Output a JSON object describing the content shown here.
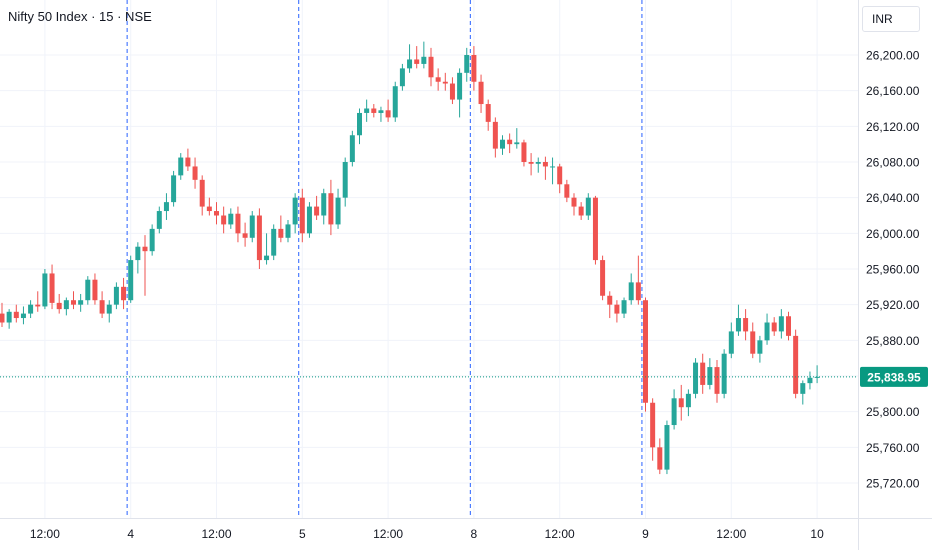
{
  "header": {
    "title": "Nifty 50 Index · 15 · NSE",
    "currency": "INR"
  },
  "colors": {
    "up": "#26a69a",
    "down": "#ef5350",
    "grid": "#f0f3fa",
    "separator": "#2962ff",
    "text": "#131722",
    "last_price_bg": "#089981"
  },
  "chart_data": {
    "type": "candlestick",
    "title": "Nifty 50 Index · 15 · NSE",
    "ylim": [
      25700,
      26220
    ],
    "y_ticks": [
      "26,200.00",
      "26,160.00",
      "26,120.00",
      "26,080.00",
      "26,040.00",
      "26,000.00",
      "25,960.00",
      "25,920.00",
      "25,880.00",
      "25,840.00",
      "25,800.00",
      "25,760.00",
      "25,720.00"
    ],
    "x_ticks": [
      {
        "label": "12:00",
        "i": 6
      },
      {
        "label": "4",
        "i": 18
      },
      {
        "label": "12:00",
        "i": 30
      },
      {
        "label": "5",
        "i": 42
      },
      {
        "label": "12:00",
        "i": 54
      },
      {
        "label": "8",
        "i": 66
      },
      {
        "label": "12:00",
        "i": 78
      },
      {
        "label": "9",
        "i": 90
      },
      {
        "label": "12:00",
        "i": 102
      },
      {
        "label": "10",
        "i": 114
      }
    ],
    "day_separators": [
      18,
      42,
      66,
      90
    ],
    "last_price": 25838.95,
    "last_price_label": "25,838.95",
    "grid": true,
    "candles": [
      [
        25910,
        25922,
        25895,
        25900
      ],
      [
        25900,
        25915,
        25893,
        25912
      ],
      [
        25912,
        25920,
        25900,
        25905
      ],
      [
        25905,
        25918,
        25898,
        25910
      ],
      [
        25910,
        25925,
        25905,
        25920
      ],
      [
        25920,
        25935,
        25912,
        25918
      ],
      [
        25918,
        25960,
        25915,
        25955
      ],
      [
        25955,
        25965,
        25915,
        25922
      ],
      [
        25922,
        25932,
        25910,
        25915
      ],
      [
        25915,
        25928,
        25908,
        25925
      ],
      [
        25925,
        25935,
        25915,
        25920
      ],
      [
        25920,
        25932,
        25912,
        25925
      ],
      [
        25925,
        25952,
        25920,
        25948
      ],
      [
        25948,
        25955,
        25920,
        25925
      ],
      [
        25925,
        25935,
        25905,
        25910
      ],
      [
        25910,
        25925,
        25900,
        25920
      ],
      [
        25920,
        25945,
        25915,
        25940
      ],
      [
        25940,
        25950,
        25915,
        25925
      ],
      [
        25925,
        25975,
        25922,
        25970
      ],
      [
        25970,
        25990,
        25955,
        25985
      ],
      [
        25985,
        25998,
        25930,
        25980
      ],
      [
        25980,
        26010,
        25975,
        26005
      ],
      [
        26005,
        26030,
        26000,
        26025
      ],
      [
        26025,
        26045,
        26015,
        26035
      ],
      [
        26035,
        26070,
        26030,
        26065
      ],
      [
        26065,
        26090,
        26060,
        26085
      ],
      [
        26085,
        26095,
        26070,
        26075
      ],
      [
        26075,
        26085,
        26050,
        26060
      ],
      [
        26060,
        26065,
        26020,
        26030
      ],
      [
        26030,
        26040,
        26020,
        26025
      ],
      [
        26025,
        26035,
        26010,
        26020
      ],
      [
        26020,
        26030,
        26000,
        26010
      ],
      [
        26010,
        26028,
        26005,
        26022
      ],
      [
        26022,
        26030,
        25990,
        26000
      ],
      [
        26000,
        26012,
        25985,
        25995
      ],
      [
        25995,
        26025,
        25990,
        26020
      ],
      [
        26020,
        26028,
        25960,
        25970
      ],
      [
        25970,
        26000,
        25965,
        25975
      ],
      [
        25975,
        26010,
        25970,
        26005
      ],
      [
        26005,
        26020,
        25990,
        25995
      ],
      [
        25995,
        26015,
        25990,
        26010
      ],
      [
        26010,
        26045,
        26000,
        26040
      ],
      [
        26040,
        26050,
        25990,
        26000
      ],
      [
        26000,
        26035,
        25995,
        26030
      ],
      [
        26030,
        26042,
        26015,
        26020
      ],
      [
        26020,
        26050,
        26010,
        26045
      ],
      [
        26045,
        26060,
        25998,
        26010
      ],
      [
        26010,
        26050,
        26005,
        26040
      ],
      [
        26040,
        26085,
        26030,
        26080
      ],
      [
        26080,
        26115,
        26075,
        26110
      ],
      [
        26110,
        26140,
        26100,
        26135
      ],
      [
        26135,
        26150,
        26125,
        26140
      ],
      [
        26140,
        26145,
        26130,
        26135
      ],
      [
        26135,
        26142,
        26125,
        26138
      ],
      [
        26138,
        26150,
        26125,
        26130
      ],
      [
        26130,
        26170,
        26125,
        26165
      ],
      [
        26165,
        26190,
        26160,
        26185
      ],
      [
        26185,
        26212,
        26180,
        26195
      ],
      [
        26195,
        26210,
        26185,
        26190
      ],
      [
        26190,
        26215,
        26185,
        26198
      ],
      [
        26198,
        26208,
        26165,
        26175
      ],
      [
        26175,
        26185,
        26160,
        26170
      ],
      [
        26170,
        26180,
        26160,
        26168
      ],
      [
        26168,
        26175,
        26145,
        26150
      ],
      [
        26150,
        26185,
        26130,
        26180
      ],
      [
        26180,
        26208,
        26170,
        26200
      ],
      [
        26200,
        26210,
        26160,
        26170
      ],
      [
        26170,
        26178,
        26135,
        26145
      ],
      [
        26145,
        26150,
        26115,
        26125
      ],
      [
        26125,
        26130,
        26085,
        26095
      ],
      [
        26095,
        26110,
        26088,
        26105
      ],
      [
        26105,
        26112,
        26090,
        26100
      ],
      [
        26100,
        26118,
        26095,
        26102
      ],
      [
        26102,
        26105,
        26075,
        26080
      ],
      [
        26080,
        26090,
        26065,
        26078
      ],
      [
        26078,
        26085,
        26068,
        26080
      ],
      [
        26080,
        26086,
        26060,
        26075
      ],
      [
        26075,
        26085,
        26055,
        26075
      ],
      [
        26075,
        26078,
        26045,
        26055
      ],
      [
        26055,
        26060,
        26035,
        26040
      ],
      [
        26040,
        26045,
        26020,
        26030
      ],
      [
        26030,
        26035,
        26015,
        26020
      ],
      [
        26020,
        26045,
        26015,
        26040
      ],
      [
        26040,
        26042,
        25965,
        25970
      ],
      [
        25970,
        25975,
        25925,
        25930
      ],
      [
        25930,
        25935,
        25905,
        25920
      ],
      [
        25920,
        25925,
        25900,
        25910
      ],
      [
        25910,
        25928,
        25905,
        25925
      ],
      [
        25925,
        25955,
        25920,
        25945
      ],
      [
        25945,
        25975,
        25920,
        25925
      ],
      [
        25925,
        25928,
        25800,
        25810
      ],
      [
        25810,
        25815,
        25745,
        25760
      ],
      [
        25760,
        25770,
        25730,
        25735
      ],
      [
        25735,
        25790,
        25730,
        25785
      ],
      [
        25785,
        25825,
        25780,
        25815
      ],
      [
        25815,
        25830,
        25790,
        25805
      ],
      [
        25805,
        25825,
        25795,
        25820
      ],
      [
        25820,
        25860,
        25815,
        25855
      ],
      [
        25855,
        25865,
        25820,
        25830
      ],
      [
        25830,
        25860,
        25825,
        25850
      ],
      [
        25850,
        25858,
        25810,
        25820
      ],
      [
        25820,
        25870,
        25815,
        25865
      ],
      [
        25865,
        25900,
        25860,
        25890
      ],
      [
        25890,
        25920,
        25885,
        25905
      ],
      [
        25905,
        25915,
        25880,
        25890
      ],
      [
        25890,
        25900,
        25860,
        25865
      ],
      [
        25865,
        25885,
        25855,
        25880
      ],
      [
        25880,
        25910,
        25875,
        25900
      ],
      [
        25900,
        25906,
        25885,
        25890
      ],
      [
        25890,
        25915,
        25882,
        25907
      ],
      [
        25907,
        25912,
        25880,
        25885
      ],
      [
        25885,
        25892,
        25815,
        25820
      ],
      [
        25820,
        25835,
        25808,
        25832
      ],
      [
        25832,
        25845,
        25825,
        25838
      ],
      [
        25838,
        25852,
        25832,
        25839
      ]
    ]
  }
}
